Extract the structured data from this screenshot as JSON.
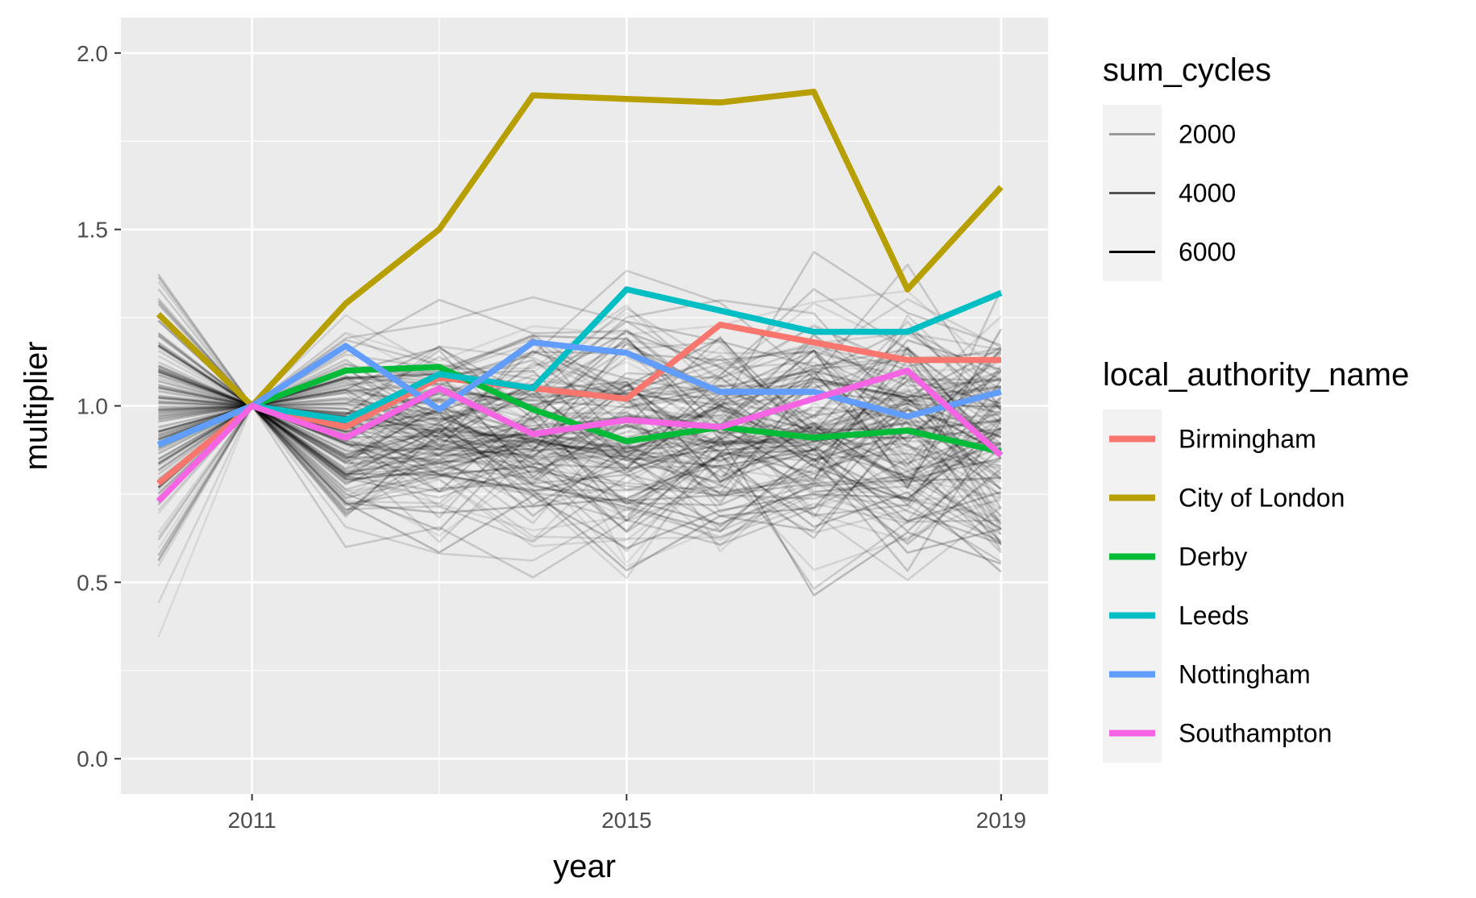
{
  "chart_data": {
    "type": "line",
    "xlabel": "year",
    "ylabel": "multiplier",
    "xlim": [
      2009.6,
      2019.5
    ],
    "ylim": [
      -0.1,
      2.1
    ],
    "x_ticks": [
      2011,
      2015,
      2019
    ],
    "x_tick_labels": [
      "2011",
      "2015",
      "2019"
    ],
    "y_ticks": [
      0.0,
      0.5,
      1.0,
      1.5,
      2.0
    ],
    "y_tick_labels": [
      "0.0",
      "0.5",
      "1.0",
      "1.5",
      "2.0"
    ],
    "grid": true,
    "panel_background": "#EBEBEB",
    "x": [
      2010,
      2011,
      2012,
      2013,
      2014,
      2015,
      2016,
      2017,
      2018,
      2019
    ],
    "series": [
      {
        "name": "Birmingham",
        "color": "#F8766D",
        "values": [
          0.78,
          1.0,
          0.94,
          1.08,
          1.05,
          1.02,
          1.23,
          1.18,
          1.13,
          1.13
        ]
      },
      {
        "name": "City of London",
        "color": "#B79F00",
        "values": [
          1.26,
          1.0,
          1.29,
          1.5,
          1.88,
          1.87,
          1.86,
          1.89,
          1.33,
          1.62
        ]
      },
      {
        "name": "Derby",
        "color": "#00BA38",
        "values": [
          0.89,
          1.0,
          1.1,
          1.11,
          0.99,
          0.9,
          0.94,
          0.91,
          0.93,
          0.87
        ]
      },
      {
        "name": "Leeds",
        "color": "#00BFC4",
        "values": [
          0.89,
          1.0,
          0.96,
          1.09,
          1.05,
          1.33,
          1.27,
          1.21,
          1.21,
          1.32
        ]
      },
      {
        "name": "Nottingham",
        "color": "#619CFF",
        "values": [
          0.89,
          1.0,
          1.17,
          0.99,
          1.18,
          1.15,
          1.04,
          1.04,
          0.97,
          1.04
        ]
      },
      {
        "name": "Southampton",
        "color": "#F564E3",
        "values": [
          0.73,
          1.0,
          0.91,
          1.05,
          0.92,
          0.96,
          0.94,
          1.02,
          1.1,
          0.86
        ]
      }
    ],
    "background_series_color": "#000000",
    "background_series_count": 150,
    "legends": [
      {
        "title": "sum_cycles",
        "type": "alpha",
        "entries": [
          {
            "label": "2000",
            "color": "#9A9A9A"
          },
          {
            "label": "4000",
            "color": "#555555"
          },
          {
            "label": "6000",
            "color": "#000000"
          }
        ]
      },
      {
        "title": "local_authority_name",
        "type": "color",
        "entries": [
          {
            "label": "Birmingham",
            "color": "#F8766D"
          },
          {
            "label": "City of London",
            "color": "#B79F00"
          },
          {
            "label": "Derby",
            "color": "#00BA38"
          },
          {
            "label": "Leeds",
            "color": "#00BFC4"
          },
          {
            "label": "Nottingham",
            "color": "#619CFF"
          },
          {
            "label": "Southampton",
            "color": "#F564E3"
          }
        ]
      }
    ]
  }
}
